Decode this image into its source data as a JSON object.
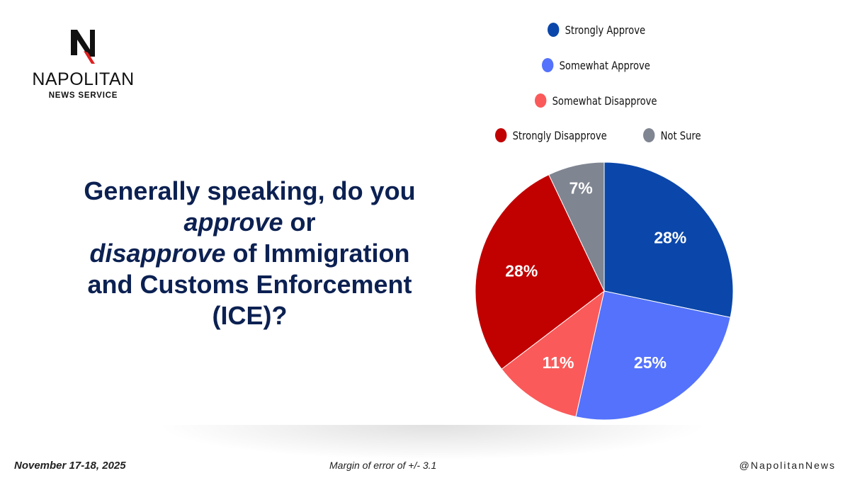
{
  "logo": {
    "brand": "NAPOLITAN",
    "sub": "NEWS SERVICE"
  },
  "question": {
    "p1": "Generally speaking, do you ",
    "em1": "approve",
    "p2": " or ",
    "em2": "disapprove",
    "p3": " of Immigration and Customs Enforcement (ICE)?"
  },
  "footer": {
    "date": "November 17-18, 2025",
    "margin": "Margin of error of +/- 3.1",
    "handle": "@NapolitanNews"
  },
  "chart_data": {
    "type": "pie",
    "title": "Generally speaking, do you approve or disapprove of Immigration and Customs Enforcement (ICE)?",
    "legend_position": "top",
    "slices": [
      {
        "label": "Strongly Approve",
        "value": 28,
        "display": "28%",
        "color": "#0b47aa"
      },
      {
        "label": "Somewhat Approve",
        "value": 25,
        "display": "25%",
        "color": "#5472fb"
      },
      {
        "label": "Somewhat Disapprove",
        "value": 11,
        "display": "11%",
        "color": "#fb5a5a"
      },
      {
        "label": "Strongly Disapprove",
        "value": 28,
        "display": "28%",
        "color": "#c10000"
      },
      {
        "label": "Not Sure",
        "value": 7,
        "display": "7%",
        "color": "#7f8591"
      }
    ]
  }
}
